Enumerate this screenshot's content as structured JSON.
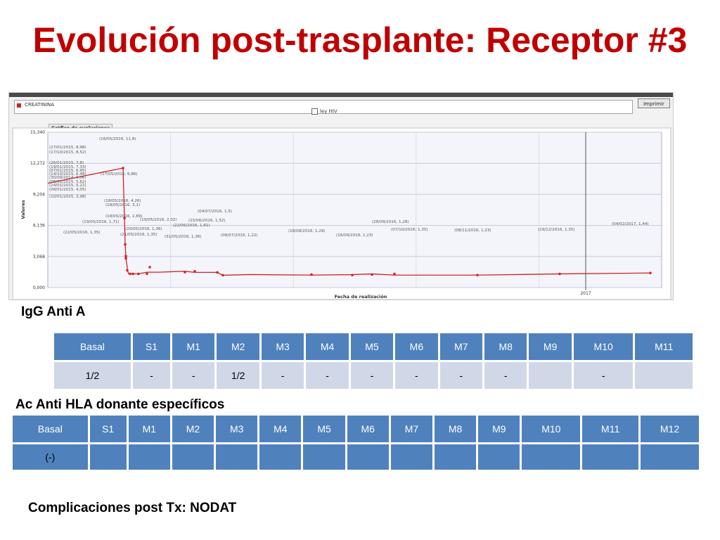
{
  "title": "Evolución post-trasplante: Receptor #3",
  "app": {
    "list_item": "CREATININA",
    "checkbox_label": "ley HIV",
    "print_button": "Imprimir",
    "tab_label": "Gráfico de evoluciones"
  },
  "chart_data": {
    "type": "line",
    "title": "",
    "xlabel": "Fecha de realización",
    "ylabel": "Valores",
    "ylim": [
      0,
      15.34
    ],
    "yticks": [
      "0,000",
      "3,068",
      "6,136",
      "9,204",
      "12,272",
      "15,340"
    ],
    "xtick_labels": [
      "2017"
    ],
    "grid": true,
    "series": [
      {
        "color": "#d42020",
        "points": [
          {
            "x": "10/01/2015",
            "y": 3.98,
            "label": "(10/01/2015, 3,98)"
          },
          {
            "x": "08/01/2015",
            "y": 4.05,
            "label": "(08/01/2015, 4,05)"
          },
          {
            "x": "24/01/2015",
            "y": 5.22,
            "label": "(24/01/2015, 5,22)"
          },
          {
            "x": "06/01/2015",
            "y": 5.62,
            "label": "(06/01/2015, 5,62)"
          },
          {
            "x": "30/09/2014",
            "y": 6.06,
            "label": "(30/09/2014, 6,06)"
          },
          {
            "x": "14/10/2015",
            "y": 6.48,
            "label": "(14/10/2015, 6,48)"
          },
          {
            "x": "07/01/2015",
            "y": 6.95,
            "label": "(07/01/2015, 6,95)"
          },
          {
            "x": "19/01/2015",
            "y": 7.33,
            "label": "(19/01/2015, 7,33)"
          },
          {
            "x": "26/01/2015",
            "y": 7.8,
            "label": "(26/01/2015, 7,8)"
          },
          {
            "x": "17/10/2015",
            "y": 8.52,
            "label": "(17/10/2015, 8,52)"
          },
          {
            "x": "27/01/2015",
            "y": 8.98,
            "label": "(27/01/2015, 8,98)"
          },
          {
            "x": "16/05/2016",
            "y": 11.8,
            "label": "(16/05/2016, 11,8)"
          },
          {
            "x": "17/05/2016",
            "y": 6.86,
            "label": "(17/05/2016, 6,86)"
          },
          {
            "x": "18/05/2016",
            "y": 4.26,
            "label": "(18/05/2016, 4,26)"
          },
          {
            "x": "18/05/2016",
            "y": 3.1,
            "label": "(18/05/2016, 3,1)"
          },
          {
            "x": "18/05/2016",
            "y": 2.89,
            "label": "(18/05/2016, 2,89)"
          },
          {
            "x": "19/05/2016",
            "y": 2.02,
            "label": "(19/05/2016, 2.02)"
          },
          {
            "x": "19/05/2016",
            "y": 1.71,
            "label": "(19/05/2016, 1,71)"
          },
          {
            "x": "20/05/2016",
            "y": 1.36,
            "label": "(20/05/2016, 1,36)"
          },
          {
            "x": "21/05/2016",
            "y": 1.35,
            "label": "(21/05/2016, 1,35)"
          },
          {
            "x": "22/05/2016",
            "y": 1.35,
            "label": "(22/05/2016, 1,35)"
          },
          {
            "x": "31/05/2016",
            "y": 1.36,
            "label": "(31/05/2016, 1,36)"
          },
          {
            "x": "15/06/2016",
            "y": 1.52,
            "label": "(15/06/2016, 1,52)"
          },
          {
            "x": "22/06/2016",
            "y": 1.61,
            "label": "(22/06/2016, 1,61)"
          },
          {
            "x": "04/07/2016",
            "y": 1.5,
            "label": "(04/07/2016, 1,5)"
          },
          {
            "x": "06/07/2016",
            "y": 1.22,
            "label": "(06/07/2016, 1,22)"
          },
          {
            "x": "18/08/2016",
            "y": 1.29,
            "label": "(18/08/2016, 1,29)"
          },
          {
            "x": "16/09/2016",
            "y": 1.23,
            "label": "(16/09/2016, 1,23)"
          },
          {
            "x": "28/09/2016",
            "y": 1.28,
            "label": "(28/09/2016, 1,28)"
          },
          {
            "x": "07/10/2016",
            "y": 1.35,
            "label": "(07/10/2016, 1,35)"
          },
          {
            "x": "08/11/2016",
            "y": 1.23,
            "label": "(08/11/2016, 1,23)"
          },
          {
            "x": "19/12/2016",
            "y": 1.35,
            "label": "(19/12/2016, 1,35)"
          },
          {
            "x": "04/02/2017",
            "y": 1.44,
            "label": "(04/02/2017, 1,44)"
          }
        ]
      }
    ]
  },
  "igg": {
    "label": "IgG Anti A",
    "headers": [
      "Basal",
      "S1",
      "M1",
      "M2",
      "M3",
      "M4",
      "M5",
      "M6",
      "M7",
      "M8",
      "M9",
      "M10",
      "M11"
    ],
    "values": [
      "1/2",
      "-",
      "-",
      "1/2",
      "-",
      "-",
      "-",
      "-",
      "-",
      "-",
      "",
      "-",
      ""
    ]
  },
  "hla": {
    "label": "Ac Anti HLA donante específicos",
    "headers": [
      "Basal",
      "S1",
      "M1",
      "M2",
      "M3",
      "M4",
      "M5",
      "M6",
      "M7",
      "M8",
      "M9",
      "M10",
      "M11",
      "M12"
    ],
    "values": [
      "(-)",
      "",
      "",
      "",
      "",
      "",
      "",
      "",
      "",
      "",
      "",
      "",
      "",
      ""
    ]
  },
  "footer": "Complicaciones post Tx:  NODAT"
}
